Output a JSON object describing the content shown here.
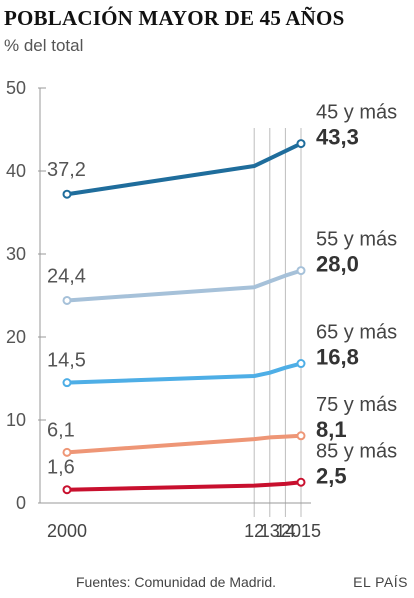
{
  "header": {
    "title": "POBLACIÓN MAYOR DE 45 AÑOS",
    "subtitle": "% del total"
  },
  "footer": {
    "source": "Fuentes: Comunidad de Madrid.",
    "brand": "EL PAÍS"
  },
  "chart_data": {
    "type": "line",
    "title": "POBLACIÓN MAYOR DE 45 AÑOS",
    "subtitle": "% del total",
    "ylim": [
      0,
      50
    ],
    "y_ticks": [
      0,
      10,
      20,
      30,
      40,
      50
    ],
    "x_ticks": [
      {
        "value": 2000,
        "label": "2000"
      },
      {
        "value": 2012,
        "label": "12"
      },
      {
        "value": 2013,
        "label": "13"
      },
      {
        "value": 2014,
        "label": "14"
      },
      {
        "value": 2015,
        "label": "2015"
      }
    ],
    "xlim": [
      2000,
      2015
    ],
    "grid": "vertical lines at 2012, 2013, 2014, 2015; horizontal ticks only",
    "series": [
      {
        "name": "45 y más",
        "color": "#1f6d9c",
        "x": [
          2000,
          2012,
          2013,
          2014,
          2015
        ],
        "values": [
          37.2,
          40.6,
          41.5,
          42.4,
          43.3
        ],
        "start_label": "37,2",
        "end_label": "43,3"
      },
      {
        "name": "55 y más",
        "color": "#a6c1d9",
        "x": [
          2000,
          2012,
          2013,
          2014,
          2015
        ],
        "values": [
          24.4,
          26.0,
          26.7,
          27.4,
          28.0
        ],
        "start_label": "24,4",
        "end_label": "28,0"
      },
      {
        "name": "65 y más",
        "color": "#4eaee6",
        "x": [
          2000,
          2012,
          2013,
          2014,
          2015
        ],
        "values": [
          14.5,
          15.3,
          15.7,
          16.3,
          16.8
        ],
        "start_label": "14,5",
        "end_label": "16,8"
      },
      {
        "name": "75 y más",
        "color": "#ee9676",
        "x": [
          2000,
          2012,
          2013,
          2014,
          2015
        ],
        "values": [
          6.1,
          7.7,
          7.9,
          8.0,
          8.1
        ],
        "start_label": "6,1",
        "end_label": "8,1"
      },
      {
        "name": "85 y más",
        "color": "#c8102e",
        "x": [
          2000,
          2012,
          2013,
          2014,
          2015
        ],
        "values": [
          1.6,
          2.1,
          2.2,
          2.3,
          2.5
        ],
        "start_label": "1,6",
        "end_label": "2,5"
      }
    ]
  }
}
